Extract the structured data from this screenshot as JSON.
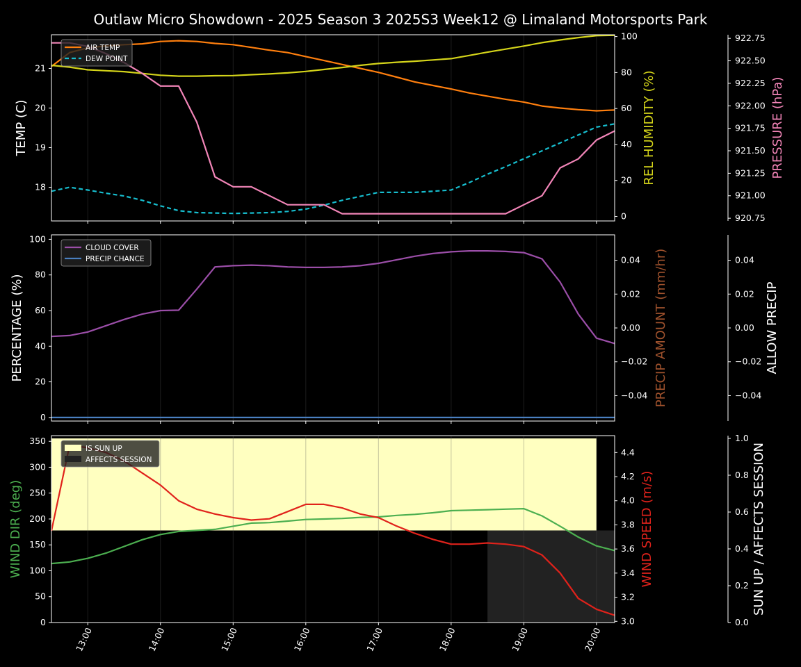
{
  "title": "Outlaw Micro Showdown - 2025 Season 3 2025S3 Week12 @ Limaland Motorsports Park",
  "colors": {
    "air_temp": "#ff7f0e",
    "dew_point": "#17becf",
    "humidity": "#d4d41a",
    "pressure": "#f285b8",
    "cloud": "#9b4ea8",
    "precip_chance": "#4a7fc0",
    "precip_amount_label": "#a0522d",
    "wind_dir": "#4caf50",
    "wind_speed": "#e0221b",
    "sun_up": "#ffffc0",
    "affects_session": "#222222"
  },
  "x_ticks": [
    "13:00",
    "14:00",
    "15:00",
    "16:00",
    "17:00",
    "18:00",
    "19:00",
    "20:00"
  ],
  "chart_data": [
    {
      "type": "line",
      "x_range": [
        12.5,
        20.25
      ],
      "x": [
        12.5,
        12.75,
        13.0,
        13.25,
        13.5,
        13.75,
        14.0,
        14.25,
        14.5,
        14.75,
        15.0,
        15.25,
        15.5,
        15.75,
        16.0,
        16.25,
        16.5,
        16.75,
        17.0,
        17.25,
        17.5,
        17.75,
        18.0,
        18.25,
        18.5,
        18.75,
        19.0,
        19.25,
        19.5,
        19.75,
        20.0,
        20.25
      ],
      "axes": {
        "left": {
          "label": "TEMP (C)",
          "range": [
            17.15,
            21.85
          ],
          "ticks": [
            18,
            19,
            20,
            21
          ]
        },
        "right": {
          "label": "REL HUMIDITY (%)",
          "range": [
            -2.5,
            101
          ],
          "ticks": [
            0,
            20,
            40,
            60,
            80,
            100
          ]
        },
        "far_right": {
          "label": "PRESSURE (hPa)",
          "range": [
            920.72,
            922.79
          ],
          "ticks": [
            "920.75",
            "921.00",
            "921.25",
            "921.50",
            "921.75",
            "922.00",
            "922.25",
            "922.50",
            "922.75"
          ]
        }
      },
      "legend": [
        "AIR TEMP",
        "DEW POINT"
      ],
      "series": [
        {
          "name": "AIR TEMP",
          "axis": "left",
          "style": "solid",
          "color_key": "air_temp",
          "values": [
            21.05,
            21.4,
            21.52,
            21.57,
            21.6,
            21.62,
            21.68,
            21.7,
            21.68,
            21.63,
            21.6,
            21.53,
            21.46,
            21.4,
            21.3,
            21.2,
            21.1,
            21.0,
            20.9,
            20.78,
            20.66,
            20.57,
            20.48,
            20.38,
            20.3,
            20.22,
            20.15,
            20.05,
            20.0,
            19.96,
            19.93,
            19.95
          ]
        },
        {
          "name": "DEW POINT",
          "axis": "left",
          "style": "dashed",
          "color_key": "dew_point",
          "values": [
            17.9,
            18.0,
            17.93,
            17.85,
            17.78,
            17.67,
            17.53,
            17.41,
            17.36,
            17.35,
            17.34,
            17.35,
            17.36,
            17.39,
            17.45,
            17.55,
            17.67,
            17.77,
            17.87,
            17.87,
            17.87,
            17.9,
            17.93,
            18.12,
            18.33,
            18.52,
            18.72,
            18.92,
            19.12,
            19.32,
            19.52,
            19.6
          ]
        },
        {
          "color_key": "humidity",
          "axis": "right",
          "style": "solid",
          "values": [
            84,
            83,
            81.5,
            81,
            80.5,
            79.5,
            78.5,
            78,
            78,
            78.2,
            78.3,
            78.8,
            79.2,
            79.8,
            80.6,
            81.7,
            82.8,
            84,
            85,
            85.7,
            86.3,
            87,
            87.7,
            89.5,
            91.3,
            93,
            94.7,
            96.6,
            98.1,
            99.4,
            100.5,
            100.7
          ]
        },
        {
          "color_key": "pressure",
          "axis": "far_right",
          "style": "solid",
          "values": [
            922.7,
            922.7,
            922.66,
            922.58,
            922.48,
            922.36,
            922.22,
            922.22,
            921.82,
            921.21,
            921.1,
            921.1,
            921.0,
            920.9,
            920.9,
            920.9,
            920.8,
            920.8,
            920.8,
            920.8,
            920.8,
            920.8,
            920.8,
            920.8,
            920.8,
            920.8,
            920.9,
            921.0,
            921.31,
            921.41,
            921.62,
            921.72
          ]
        }
      ]
    },
    {
      "type": "line",
      "x_range": [
        12.5,
        20.25
      ],
      "x": [
        12.5,
        12.75,
        13.0,
        13.25,
        13.5,
        13.75,
        14.0,
        14.25,
        14.5,
        14.75,
        15.0,
        15.25,
        15.5,
        15.75,
        16.0,
        16.25,
        16.5,
        16.75,
        17.0,
        17.25,
        17.5,
        17.75,
        18.0,
        18.25,
        18.5,
        18.75,
        19.0,
        19.25,
        19.5,
        19.75,
        20.0,
        20.25
      ],
      "axes": {
        "left": {
          "label": "PERCENTAGE (%)",
          "range": [
            -2,
            102.5
          ],
          "ticks": [
            0,
            20,
            40,
            60,
            80,
            100
          ]
        },
        "right": {
          "label": "PRECIP AMOUNT (mm/hr)",
          "range": [
            -0.055,
            0.055
          ],
          "ticks": [
            "−0.04",
            "−0.02",
            "0.00",
            "0.02",
            "0.04"
          ]
        },
        "far_right": {
          "label": "ALLOW PRECIP",
          "range": [
            -0.055,
            0.055
          ],
          "ticks": [
            "−0.04",
            "−0.02",
            "0.00",
            "0.02",
            "0.04"
          ]
        }
      },
      "legend": [
        "CLOUD COVER",
        "PRECIP CHANCE"
      ],
      "series": [
        {
          "name": "CLOUD COVER",
          "axis": "left",
          "color_key": "cloud",
          "values": [
            45.5,
            46,
            48,
            51.5,
            55,
            58,
            60,
            60.2,
            72,
            84.5,
            85.2,
            85.5,
            85.2,
            84.5,
            84.2,
            84.2,
            84.5,
            85.2,
            86.5,
            88.5,
            90.5,
            92,
            93,
            93.5,
            93.5,
            93.2,
            92.5,
            89,
            76,
            58,
            44.5,
            41.5
          ]
        },
        {
          "name": "PRECIP CHANCE",
          "axis": "left",
          "color_key": "precip_chance",
          "values": [
            0,
            0,
            0,
            0,
            0,
            0,
            0,
            0,
            0,
            0,
            0,
            0,
            0,
            0,
            0,
            0,
            0,
            0,
            0,
            0,
            0,
            0,
            0,
            0,
            0,
            0,
            0,
            0,
            0,
            0,
            0,
            0
          ]
        }
      ]
    },
    {
      "type": "line",
      "x_range": [
        12.5,
        20.25
      ],
      "x": [
        12.5,
        12.75,
        13.0,
        13.25,
        13.5,
        13.75,
        14.0,
        14.25,
        14.5,
        14.75,
        15.0,
        15.25,
        15.5,
        15.75,
        16.0,
        16.25,
        16.5,
        16.75,
        17.0,
        17.25,
        17.5,
        17.75,
        18.0,
        18.25,
        18.5,
        18.75,
        19.0,
        19.25,
        19.5,
        19.75,
        20.0,
        20.25
      ],
      "axes": {
        "left": {
          "label": "WIND DIR (deg)",
          "range": [
            0,
            361
          ],
          "ticks": [
            0,
            50,
            100,
            150,
            200,
            250,
            300,
            350
          ]
        },
        "right": {
          "label": "WIND SPEED (m/s)",
          "range": [
            2.99,
            4.54
          ],
          "ticks": [
            "3.0",
            "3.2",
            "3.4",
            "3.6",
            "3.8",
            "4.0",
            "4.2",
            "4.4"
          ]
        },
        "far_right": {
          "label": "SUN UP / AFFECTS SESSION",
          "range": [
            0,
            1.015
          ],
          "ticks": [
            "0.0",
            "0.2",
            "0.4",
            "0.6",
            "0.8",
            "1.0"
          ]
        }
      },
      "legend": [
        "IS SUN UP",
        "AFFECTS SESSION"
      ],
      "bands": [
        {
          "name": "IS SUN UP",
          "color_key": "sun_up",
          "x_start": 12.5,
          "x_end": 20.0,
          "bottom": 0.5,
          "top": 1.0
        },
        {
          "name": "AFFECTS SESSION",
          "color_key": "affects_session",
          "x_start": 18.5,
          "x_end": 20.25,
          "bottom": 0.0,
          "top": 0.5
        }
      ],
      "series": [
        {
          "axis": "left",
          "color_key": "wind_dir",
          "values": [
            114,
            117,
            124,
            134,
            147,
            160,
            170,
            176,
            178,
            180,
            186,
            192,
            193,
            196,
            199,
            200,
            201,
            203,
            204,
            207,
            209,
            212,
            216,
            217,
            218,
            219,
            220,
            206,
            186,
            165,
            148,
            139
          ]
        },
        {
          "axis": "right",
          "color_key": "wind_speed",
          "values": [
            3.75,
            4.46,
            4.44,
            4.4,
            4.33,
            4.23,
            4.13,
            4.0,
            3.93,
            3.89,
            3.86,
            3.84,
            3.85,
            3.91,
            3.97,
            3.97,
            3.94,
            3.89,
            3.86,
            3.79,
            3.73,
            3.68,
            3.64,
            3.64,
            3.65,
            3.64,
            3.62,
            3.55,
            3.4,
            3.19,
            3.1,
            3.05
          ]
        }
      ]
    }
  ]
}
